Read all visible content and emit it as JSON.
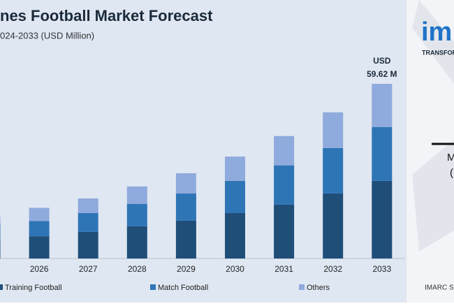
{
  "chart_data": {
    "type": "stacked-bar",
    "title": "nes Football Market Forecast",
    "subtitle": "024-2033 (USD Million)",
    "categories": [
      null,
      "2026",
      "2027",
      "2028",
      "2029",
      "2030",
      "2031",
      "2032",
      "2033"
    ],
    "series": [
      {
        "name": "Training Football",
        "color": "#1f4e79",
        "values": [
          6.4,
          7.6,
          9.1,
          11.0,
          12.9,
          15.5,
          18.4,
          22.2,
          26.5
        ]
      },
      {
        "name": "Match Football",
        "color": "#2e75b6",
        "values": [
          5.5,
          5.2,
          6.4,
          7.6,
          9.3,
          11.0,
          13.4,
          15.5,
          18.4
        ]
      },
      {
        "name": "Others",
        "color": "#8faadc",
        "values": [
          2.4,
          4.5,
          5.0,
          6.0,
          6.9,
          8.3,
          10.0,
          12.2,
          14.72
        ]
      }
    ],
    "ylim": [
      0,
      70
    ],
    "annotations": [
      "USD",
      "59.62 M"
    ]
  },
  "brand": {
    "logo": "im",
    "tagline": "TRANSFOR",
    "side_text_1": "M",
    "side_text_2": "(",
    "footer": "IMARC Se"
  }
}
